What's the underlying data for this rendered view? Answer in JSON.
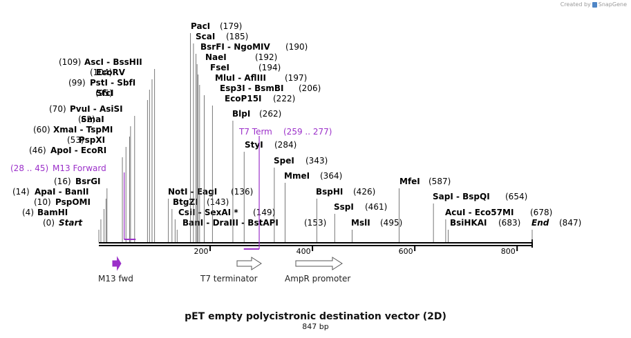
{
  "credit": {
    "text": "Created by",
    "brand": "SnapGene"
  },
  "map": {
    "title": "pET empty polycistronic destination vector (2D)",
    "size_label": "847 bp",
    "length": 847,
    "colors": {
      "feature": "#9b2fc9",
      "backbone": "#000000",
      "leader": "#555555"
    },
    "ticks": [
      {
        "pos": 200,
        "label": "200"
      },
      {
        "pos": 400,
        "label": "400"
      },
      {
        "pos": 600,
        "label": "600"
      },
      {
        "pos": 800,
        "label": "800"
      }
    ],
    "sites": [
      {
        "pos": 0,
        "label": "(0)",
        "name": "Start",
        "italic": true
      },
      {
        "pos": 4,
        "label": "(4)",
        "name": "BamHI"
      },
      {
        "pos": 10,
        "label": "(10)",
        "name": "PspOMI"
      },
      {
        "pos": 14,
        "label": "(14)",
        "name": "ApaI",
        "name2": "BanII"
      },
      {
        "pos": 16,
        "label": "(16)",
        "name": "BsrGI"
      },
      {
        "pos": 46,
        "label": "(46)",
        "name": "ApoI",
        "name2": "EcoRI"
      },
      {
        "pos": 53,
        "label": "(53)",
        "name": "PspXI"
      },
      {
        "pos": 60,
        "label": "(60)",
        "name": "XmaI",
        "name2": "TspMI"
      },
      {
        "pos": 62,
        "label": "(62)",
        "name": "SmaI"
      },
      {
        "pos": 70,
        "label": "(70)",
        "name": "PvuI",
        "name2": "AsiSI"
      },
      {
        "pos": 95,
        "label": "(95)",
        "name": "SfcI"
      },
      {
        "pos": 99,
        "label": "(99)",
        "name": "PstI",
        "name2": "SbfI"
      },
      {
        "pos": 104,
        "label": "(104)",
        "name": "EcoRV"
      },
      {
        "pos": 109,
        "label": "(109)",
        "name": "AscI",
        "name2": "BssHII"
      },
      {
        "pos": 136,
        "label": "(136)",
        "name": "NotI",
        "name2": "EagI"
      },
      {
        "pos": 143,
        "label": "(143)",
        "name": "BtgZI"
      },
      {
        "pos": 149,
        "label": "(149)",
        "name": "CsiI",
        "name2": "SexAI *"
      },
      {
        "pos": 153,
        "label": "(153)",
        "name": "BanI",
        "name2": "DraIII",
        "name3": "BstAPI"
      },
      {
        "pos": 179,
        "label": "(179)",
        "name": "PacI"
      },
      {
        "pos": 185,
        "label": "(185)",
        "name": "ScaI"
      },
      {
        "pos": 190,
        "label": "(190)",
        "name": "BsrFI",
        "name2": "NgoMIV"
      },
      {
        "pos": 192,
        "label": "(192)",
        "name": "NaeI"
      },
      {
        "pos": 194,
        "label": "(194)",
        "name": "FseI"
      },
      {
        "pos": 197,
        "label": "(197)",
        "name": "MluI",
        "name2": "AflIII"
      },
      {
        "pos": 206,
        "label": "(206)",
        "name": "Esp3I",
        "name2": "BsmBI"
      },
      {
        "pos": 222,
        "label": "(222)",
        "name": "EcoP15I"
      },
      {
        "pos": 262,
        "label": "(262)",
        "name": "BlpI"
      },
      {
        "pos": 284,
        "label": "(284)",
        "name": "StyI"
      },
      {
        "pos": 343,
        "label": "(343)",
        "name": "SpeI"
      },
      {
        "pos": 364,
        "label": "(364)",
        "name": "MmeI"
      },
      {
        "pos": 426,
        "label": "(426)",
        "name": "BspHI"
      },
      {
        "pos": 461,
        "label": "(461)",
        "name": "SspI"
      },
      {
        "pos": 495,
        "label": "(495)",
        "name": "MslI"
      },
      {
        "pos": 587,
        "label": "(587)",
        "name": "MfeI"
      },
      {
        "pos": 654,
        "label": "(654)",
        "name": "SapI",
        "name2": "BspQI"
      },
      {
        "pos": 678,
        "label": "(678)",
        "name": "AcuI",
        "name2": "Eco57MI"
      },
      {
        "pos": 683,
        "label": "(683)",
        "name": "BsiHKAI"
      },
      {
        "pos": 847,
        "label": "(847)",
        "name": "End",
        "italic": true
      }
    ],
    "primers": [
      {
        "start": 28,
        "end": 45,
        "label": "(28 .. 45)",
        "name": "M13 Forward"
      },
      {
        "start": 259,
        "end": 277,
        "label": "T7 Term",
        "range": "(259 .. 277)"
      }
    ],
    "features": [
      {
        "start": 28,
        "end": 45,
        "label": "M13 fwd",
        "filled": true
      },
      {
        "start": 270,
        "end": 318,
        "label": "T7 terminator",
        "filled": false
      },
      {
        "start": 383,
        "end": 475,
        "label": "AmpR promoter",
        "filled": false
      }
    ]
  }
}
